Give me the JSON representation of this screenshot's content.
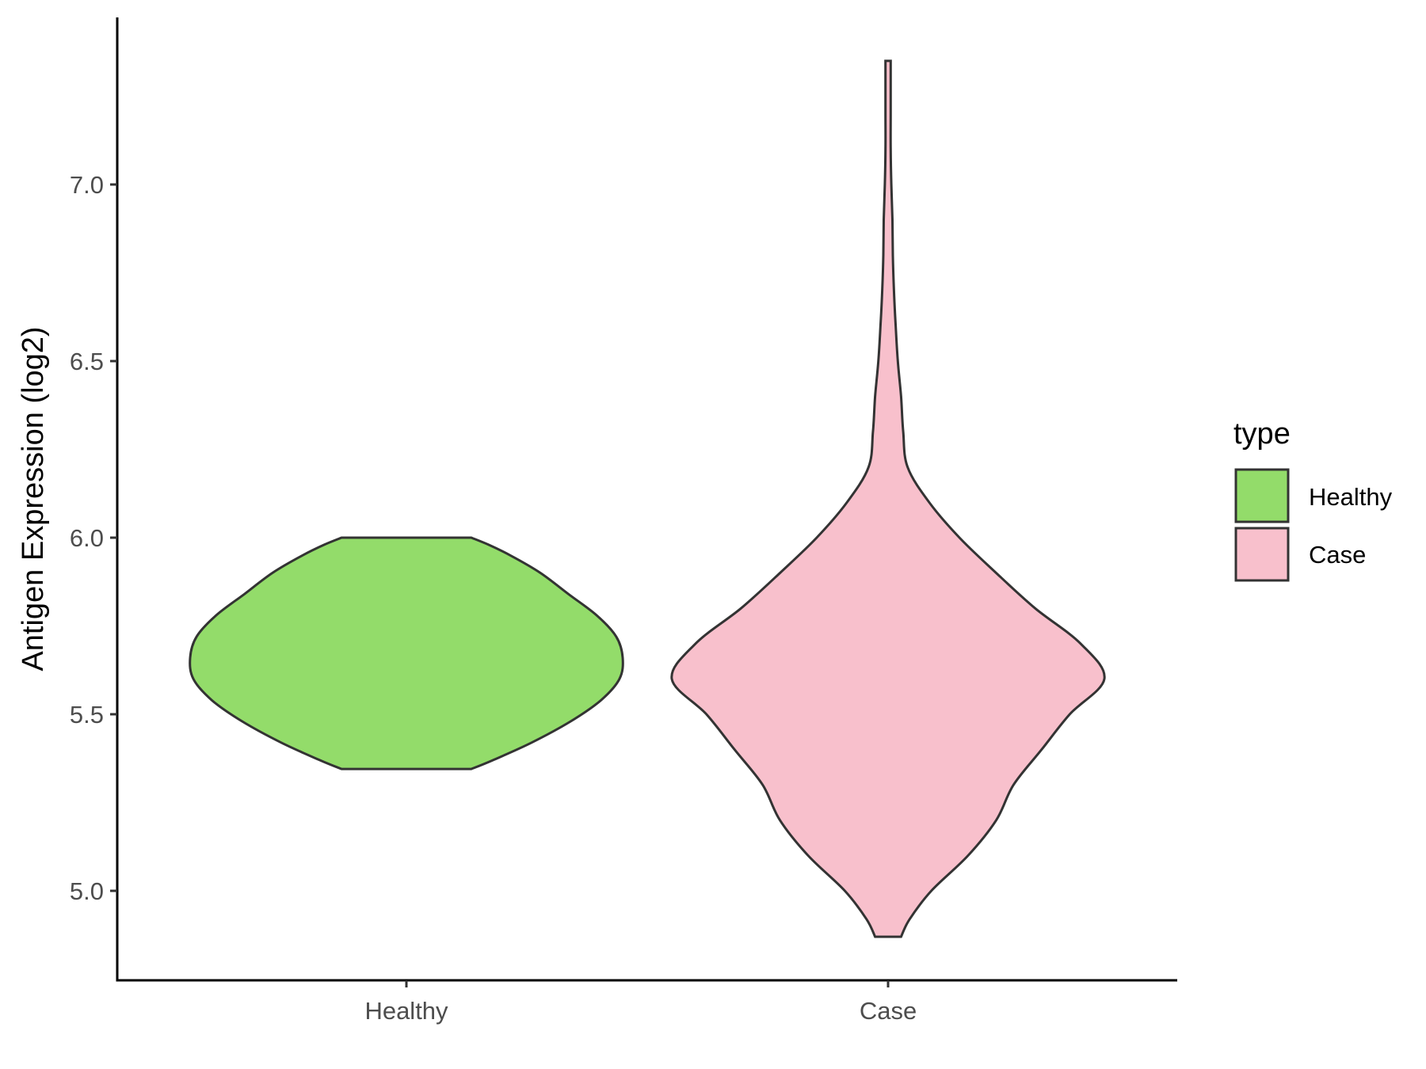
{
  "chart_data": {
    "type": "violin",
    "title": "",
    "xlabel": "",
    "ylabel": "Antigen Expression (log2)",
    "categories": [
      "Healthy",
      "Case"
    ],
    "ylim": [
      4.75,
      7.48
    ],
    "yticks": [
      "5.0",
      "5.5",
      "6.0",
      "6.5",
      "7.0"
    ],
    "grid": false,
    "legend": {
      "title": "type",
      "position": "right",
      "items": [
        {
          "label": "Healthy",
          "color": "#93dc6a"
        },
        {
          "label": "Case",
          "color": "#f8c0cc"
        }
      ]
    },
    "series": [
      {
        "category": "Healthy",
        "color": "#93dc6a",
        "min": 5.345,
        "max": 6.0,
        "profile": [
          [
            5.345,
            0.3
          ],
          [
            5.37,
            0.4
          ],
          [
            5.42,
            0.58
          ],
          [
            5.48,
            0.76
          ],
          [
            5.54,
            0.9
          ],
          [
            5.6,
            0.985
          ],
          [
            5.66,
            1.0
          ],
          [
            5.72,
            0.97
          ],
          [
            5.78,
            0.88
          ],
          [
            5.84,
            0.75
          ],
          [
            5.9,
            0.62
          ],
          [
            5.95,
            0.48
          ],
          [
            5.98,
            0.38
          ],
          [
            6.0,
            0.3
          ]
        ]
      },
      {
        "category": "Case",
        "color": "#f8c0cc",
        "min": 4.87,
        "max": 7.35,
        "profile": [
          [
            4.87,
            0.06
          ],
          [
            4.92,
            0.1
          ],
          [
            5.0,
            0.2
          ],
          [
            5.1,
            0.37
          ],
          [
            5.2,
            0.5
          ],
          [
            5.3,
            0.58
          ],
          [
            5.4,
            0.71
          ],
          [
            5.5,
            0.84
          ],
          [
            5.6,
            1.0
          ],
          [
            5.7,
            0.89
          ],
          [
            5.8,
            0.68
          ],
          [
            5.9,
            0.5
          ],
          [
            6.0,
            0.33
          ],
          [
            6.1,
            0.19
          ],
          [
            6.2,
            0.09
          ],
          [
            6.3,
            0.07
          ],
          [
            6.4,
            0.06
          ],
          [
            6.5,
            0.045
          ],
          [
            6.6,
            0.035
          ],
          [
            6.7,
            0.027
          ],
          [
            6.8,
            0.022
          ],
          [
            6.9,
            0.02
          ],
          [
            7.0,
            0.015
          ],
          [
            7.1,
            0.012
          ],
          [
            7.2,
            0.012
          ],
          [
            7.3,
            0.012
          ],
          [
            7.35,
            0.012
          ]
        ]
      }
    ]
  }
}
